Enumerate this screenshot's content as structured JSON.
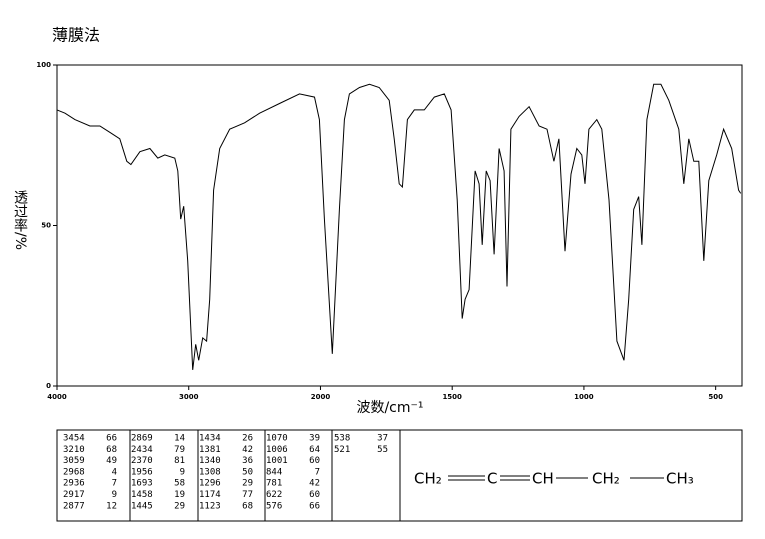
{
  "chart_data": {
    "type": "line",
    "title": "薄膜法",
    "xlabel": "波数/cm⁻¹",
    "ylabel": "透过率/%",
    "xlim": [
      4000,
      400
    ],
    "x_scale_break": 2000,
    "xticks": [
      4000,
      3000,
      2000,
      1500,
      1000,
      500
    ],
    "ylim": [
      0,
      100
    ],
    "yticks": [
      0,
      50,
      100
    ],
    "color": "#000000",
    "x": [
      4000,
      3939,
      3864,
      3750,
      3674,
      3598,
      3523,
      3470,
      3439,
      3371,
      3295,
      3235,
      3182,
      3106,
      3083,
      3061,
      3038,
      3008,
      2970,
      2947,
      2924,
      2894,
      2864,
      2841,
      2811,
      2765,
      2689,
      2576,
      2462,
      2311,
      2159,
      2045,
      2008,
      1985,
      1955,
      1928,
      1909,
      1890,
      1852,
      1814,
      1777,
      1739,
      1720,
      1701,
      1689,
      1670,
      1644,
      1606,
      1568,
      1530,
      1504,
      1481,
      1462,
      1451,
      1436,
      1413,
      1398,
      1386,
      1371,
      1356,
      1341,
      1322,
      1303,
      1292,
      1277,
      1246,
      1208,
      1170,
      1140,
      1114,
      1095,
      1072,
      1049,
      1027,
      1008,
      996,
      981,
      951,
      932,
      905,
      875,
      848,
      830,
      811,
      792,
      780,
      761,
      735,
      708,
      678,
      640,
      621,
      602,
      583,
      564,
      545,
      526,
      496,
      470,
      439,
      413,
      405
    ],
    "values": [
      86,
      85,
      83,
      81,
      81,
      79,
      77,
      70,
      69,
      73,
      74,
      71,
      72,
      71,
      67,
      52,
      56,
      39,
      5,
      13,
      8,
      15,
      14,
      27,
      61,
      74,
      80,
      82,
      85,
      88,
      91,
      90,
      83,
      52,
      10,
      55,
      83,
      91,
      93,
      94,
      93,
      89,
      77,
      63,
      62,
      83,
      86,
      86,
      90,
      91,
      86,
      58,
      21,
      27,
      30,
      67,
      63,
      44,
      67,
      64,
      41,
      74,
      67,
      31,
      80,
      84,
      87,
      81,
      80,
      70,
      77,
      42,
      66,
      74,
      72,
      63,
      80,
      83,
      80,
      58,
      14,
      8,
      27,
      55,
      59,
      44,
      83,
      94,
      94,
      89,
      80,
      63,
      77,
      70,
      70,
      39,
      64,
      72,
      80,
      74,
      61,
      60
    ]
  },
  "peak_table": [
    [
      [
        3454,
        66
      ],
      [
        3210,
        68
      ],
      [
        3059,
        49
      ],
      [
        2968,
        4
      ],
      [
        2936,
        7
      ],
      [
        2917,
        9
      ],
      [
        2877,
        12
      ]
    ],
    [
      [
        2869,
        14
      ],
      [
        2434,
        79
      ],
      [
        2370,
        81
      ],
      [
        1956,
        9
      ],
      [
        1693,
        58
      ],
      [
        1458,
        19
      ],
      [
        1445,
        29
      ]
    ],
    [
      [
        1434,
        26
      ],
      [
        1381,
        42
      ],
      [
        1340,
        36
      ],
      [
        1308,
        50
      ],
      [
        1296,
        29
      ],
      [
        1174,
        77
      ],
      [
        1123,
        68
      ]
    ],
    [
      [
        1070,
        39
      ],
      [
        1006,
        64
      ],
      [
        1001,
        60
      ],
      [
        844,
        7
      ],
      [
        781,
        42
      ],
      [
        622,
        60
      ],
      [
        576,
        66
      ]
    ],
    [
      [
        538,
        37
      ],
      [
        521,
        55
      ]
    ]
  ],
  "structure": [
    "CH₂",
    "C",
    "CH",
    "CH₂",
    "CH₃"
  ]
}
